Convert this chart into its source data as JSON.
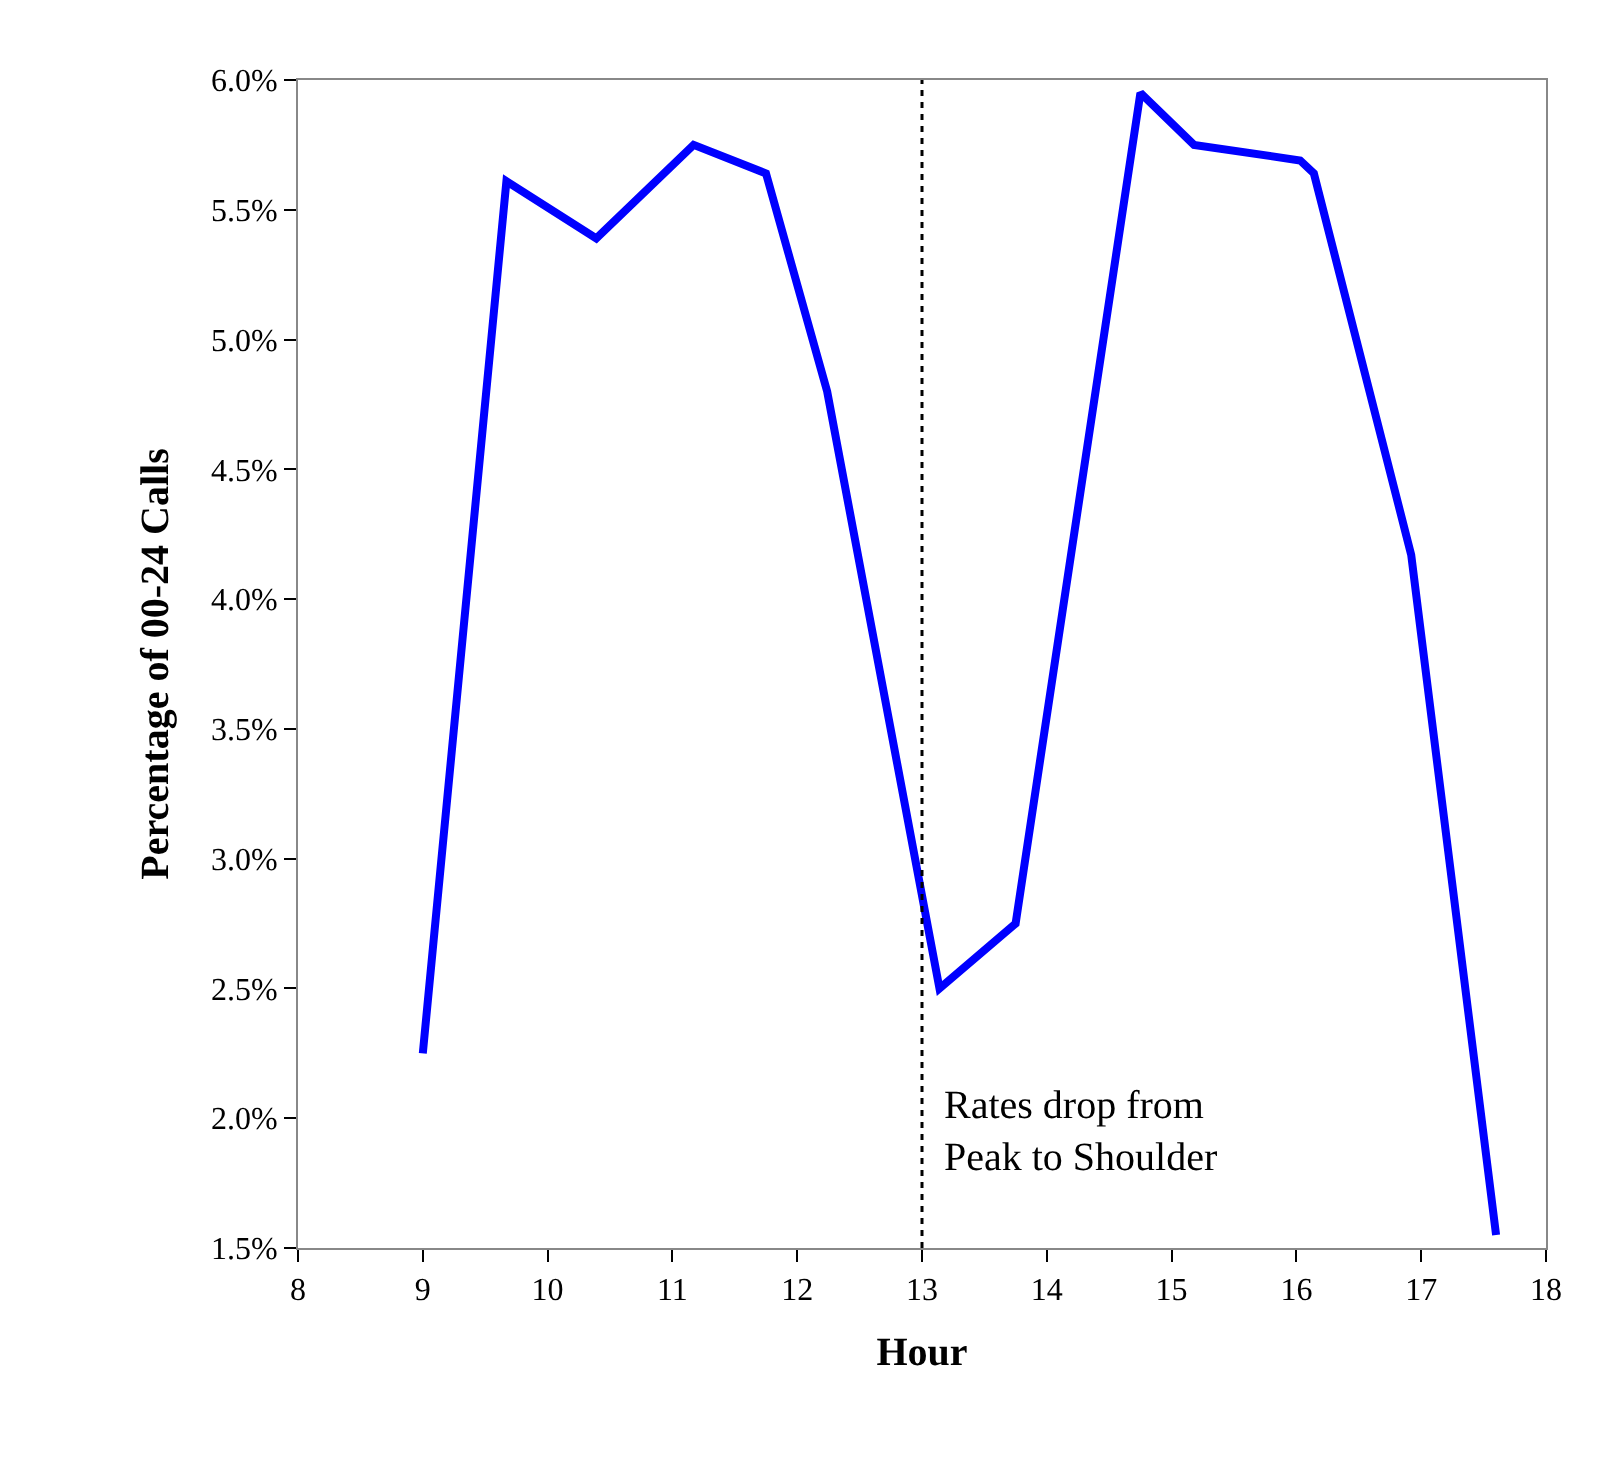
{
  "chart_data": {
    "type": "line",
    "xlabel": "Hour",
    "ylabel": "Percentage of 00-24 Calls",
    "series": [
      {
        "color": "#0000ff",
        "x": [
          9.0,
          9.67,
          10.39,
          11.17,
          11.75,
          12.24,
          13.14,
          13.75,
          14.75,
          15.18,
          16.03,
          16.14,
          16.92,
          17.6
        ],
        "values": [
          2.25,
          5.61,
          5.39,
          5.75,
          5.64,
          4.8,
          2.5,
          2.75,
          5.95,
          5.75,
          5.69,
          5.64,
          4.17,
          1.55
        ]
      }
    ],
    "xlim": [
      8,
      18
    ],
    "xticks": [
      8,
      9,
      10,
      11,
      12,
      13,
      14,
      15,
      16,
      17,
      18
    ],
    "ylim": [
      1.5,
      6.0
    ],
    "yticks": [
      {
        "value": 1.5,
        "label": "1.5%"
      },
      {
        "value": 2.0,
        "label": "2.0%"
      },
      {
        "value": 2.5,
        "label": "2.5%"
      },
      {
        "value": 3.0,
        "label": "3.0%"
      },
      {
        "value": 3.5,
        "label": "3.5%"
      },
      {
        "value": 4.0,
        "label": "4.0%"
      },
      {
        "value": 4.5,
        "label": "4.5%"
      },
      {
        "value": 5.0,
        "label": "5.0%"
      },
      {
        "value": 5.5,
        "label": "5.5%"
      },
      {
        "value": 6.0,
        "label": "6.0%"
      }
    ],
    "ref_lines": [
      {
        "axis": "x",
        "value": 13,
        "color": "#000000",
        "line_style": "dotted"
      }
    ],
    "annotations": [
      "Rates drop from\nPeak to Shoulder"
    ],
    "marker": "none",
    "line_style": "solid"
  }
}
